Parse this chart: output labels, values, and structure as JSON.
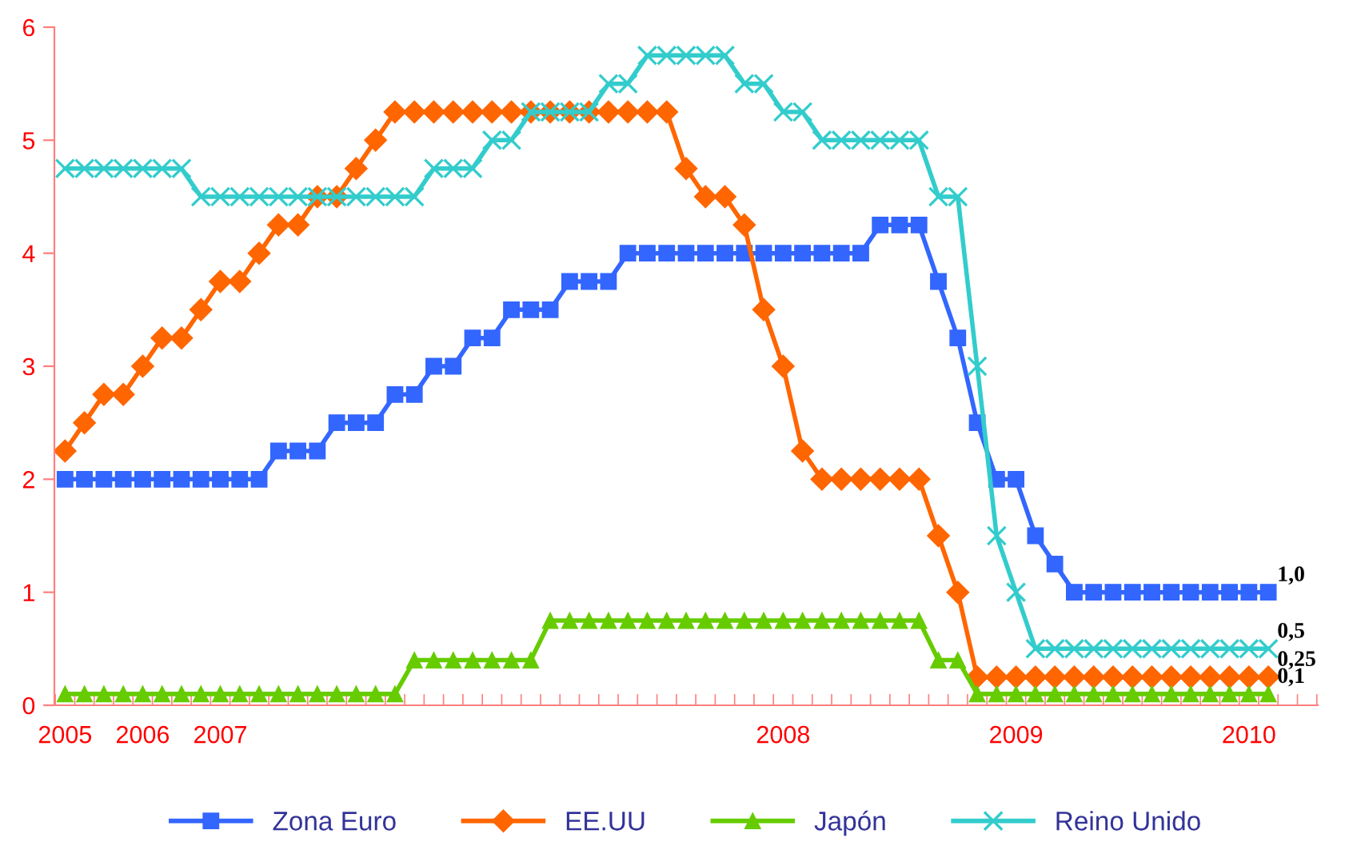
{
  "chart_data": {
    "type": "line",
    "categories": [
      "2005",
      null,
      null,
      null,
      "2006",
      null,
      null,
      null,
      "2007",
      null,
      null,
      null,
      null,
      null,
      null,
      null,
      null,
      null,
      null,
      null,
      null,
      null,
      null,
      null,
      null,
      null,
      null,
      null,
      null,
      null,
      null,
      null,
      null,
      null,
      null,
      null,
      null,
      "2008",
      null,
      null,
      null,
      null,
      null,
      null,
      null,
      null,
      null,
      null,
      null,
      "2009",
      null,
      null,
      null,
      null,
      null,
      null,
      null,
      null,
      null,
      null,
      null,
      "2010",
      null,
      null,
      null
    ],
    "series": [
      {
        "name": "Zona Euro",
        "color": "#3366ff",
        "marker": "square",
        "values": [
          2,
          2,
          2,
          2,
          2,
          2,
          2,
          2,
          2,
          2,
          2,
          2.25,
          2.25,
          2.25,
          2.5,
          2.5,
          2.5,
          2.75,
          2.75,
          3,
          3,
          3.25,
          3.25,
          3.5,
          3.5,
          3.5,
          3.75,
          3.75,
          3.75,
          4,
          4,
          4,
          4,
          4,
          4,
          4,
          4,
          4,
          4,
          4,
          4,
          4,
          4.25,
          4.25,
          4.25,
          3.75,
          3.25,
          2.5,
          2,
          2,
          1.5,
          1.25,
          1,
          1,
          1,
          1,
          1,
          1,
          1,
          1,
          1,
          1,
          1,
          null,
          null
        ]
      },
      {
        "name": "EE.UU",
        "color": "#ff6600",
        "marker": "diamond",
        "values": [
          2.25,
          2.5,
          2.75,
          2.75,
          3,
          3.25,
          3.25,
          3.5,
          3.75,
          3.75,
          4,
          4.25,
          4.25,
          4.5,
          4.5,
          4.75,
          5,
          5.25,
          5.25,
          5.25,
          5.25,
          5.25,
          5.25,
          5.25,
          5.25,
          5.25,
          5.25,
          5.25,
          5.25,
          5.25,
          5.25,
          5.25,
          4.75,
          4.5,
          4.5,
          4.25,
          3.5,
          3,
          2.25,
          2,
          2,
          2,
          2,
          2,
          2,
          1.5,
          1,
          0.25,
          0.25,
          0.25,
          0.25,
          0.25,
          0.25,
          0.25,
          0.25,
          0.25,
          0.25,
          0.25,
          0.25,
          0.25,
          0.25,
          0.25,
          0.25,
          null,
          null
        ]
      },
      {
        "name": "Japón",
        "color": "#66cc00",
        "marker": "triangle",
        "values": [
          0.1,
          0.1,
          0.1,
          0.1,
          0.1,
          0.1,
          0.1,
          0.1,
          0.1,
          0.1,
          0.1,
          0.1,
          0.1,
          0.1,
          0.1,
          0.1,
          0.1,
          0.1,
          0.4,
          0.4,
          0.4,
          0.4,
          0.4,
          0.4,
          0.4,
          0.75,
          0.75,
          0.75,
          0.75,
          0.75,
          0.75,
          0.75,
          0.75,
          0.75,
          0.75,
          0.75,
          0.75,
          0.75,
          0.75,
          0.75,
          0.75,
          0.75,
          0.75,
          0.75,
          0.75,
          0.4,
          0.4,
          0.1,
          0.1,
          0.1,
          0.1,
          0.1,
          0.1,
          0.1,
          0.1,
          0.1,
          0.1,
          0.1,
          0.1,
          0.1,
          0.1,
          0.1,
          0.1,
          null,
          null
        ]
      },
      {
        "name": "Reino Unido",
        "color": "#33cccc",
        "marker": "cross",
        "values": [
          4.75,
          4.75,
          4.75,
          4.75,
          4.75,
          4.75,
          4.75,
          4.5,
          4.5,
          4.5,
          4.5,
          4.5,
          4.5,
          4.5,
          4.5,
          4.5,
          4.5,
          4.5,
          4.5,
          4.75,
          4.75,
          4.75,
          5,
          5,
          5.25,
          5.25,
          5.25,
          5.25,
          5.5,
          5.5,
          5.75,
          5.75,
          5.75,
          5.75,
          5.75,
          5.5,
          5.5,
          5.25,
          5.25,
          5,
          5,
          5,
          5,
          5,
          5,
          4.5,
          4.5,
          3,
          1.5,
          1,
          0.5,
          0.5,
          0.5,
          0.5,
          0.5,
          0.5,
          0.5,
          0.5,
          0.5,
          0.5,
          0.5,
          0.5,
          0.5,
          null,
          null
        ]
      }
    ],
    "ylim": [
      0,
      6
    ],
    "yticks": [
      0,
      1,
      2,
      3,
      4,
      5,
      6
    ],
    "grid": false,
    "legend": "bottom",
    "line_style": "solid",
    "annotations": [
      "1,0",
      "0,5",
      "0,25",
      "0,1"
    ]
  }
}
